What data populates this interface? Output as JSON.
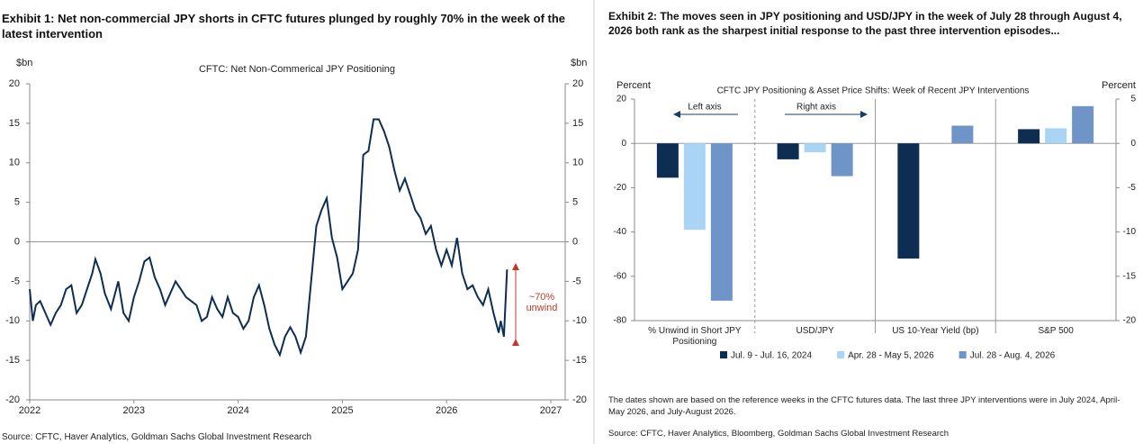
{
  "chart_data": [
    {
      "type": "line",
      "title": "Exhibit 1: Net non-commercial JPY shorts in CFTC futures plunged by roughly 70% in the week of the latest intervention",
      "subtitle": "CFTC: Net Non-Commerical JPY Positioning",
      "y_label": "$bn",
      "y2_label": "$bn",
      "annotation": "~70% unwind",
      "source": "Source: CFTC, Haver Analytics, Goldman Sachs Global Investment Research",
      "color": "#0d2d52",
      "x": [
        2022.0,
        2022.03,
        2022.06,
        2022.1,
        2022.15,
        2022.2,
        2022.25,
        2022.3,
        2022.35,
        2022.4,
        2022.45,
        2022.5,
        2022.55,
        2022.6,
        2022.63,
        2022.68,
        2022.72,
        2022.78,
        2022.85,
        2022.9,
        2022.95,
        2023.0,
        2023.05,
        2023.1,
        2023.15,
        2023.2,
        2023.25,
        2023.3,
        2023.35,
        2023.4,
        2023.45,
        2023.5,
        2023.55,
        2023.6,
        2023.65,
        2023.7,
        2023.75,
        2023.8,
        2023.85,
        2023.9,
        2023.95,
        2024.0,
        2024.05,
        2024.1,
        2024.15,
        2024.2,
        2024.25,
        2024.3,
        2024.35,
        2024.4,
        2024.45,
        2024.5,
        2024.55,
        2024.6,
        2024.65,
        2024.7,
        2024.75,
        2024.8,
        2024.85,
        2024.9,
        2024.95,
        2025.0,
        2025.05,
        2025.1,
        2025.15,
        2025.2,
        2025.25,
        2025.3,
        2025.35,
        2025.4,
        2025.45,
        2025.5,
        2025.55,
        2025.6,
        2025.65,
        2025.7,
        2025.75,
        2025.8,
        2025.85,
        2025.9,
        2025.95,
        2026.0,
        2026.05,
        2026.1,
        2026.15,
        2026.2,
        2026.25,
        2026.3,
        2026.35,
        2026.4,
        2026.45,
        2026.5,
        2026.52,
        2026.55,
        2026.58
      ],
      "values": [
        -6,
        -10,
        -8,
        -7.5,
        -9,
        -10.5,
        -9,
        -8,
        -6,
        -5.5,
        -9,
        -8,
        -6,
        -4,
        -2.2,
        -4,
        -6.5,
        -8.5,
        -5,
        -9,
        -10,
        -7,
        -5,
        -2.5,
        -2,
        -4.5,
        -6,
        -8,
        -6.5,
        -5,
        -6,
        -7,
        -7.5,
        -8,
        -10,
        -9.5,
        -7,
        -8.5,
        -9.5,
        -7,
        -9,
        -9.5,
        -11,
        -10,
        -7,
        -5.5,
        -8,
        -11,
        -13,
        -14.3,
        -12,
        -10.8,
        -12,
        -14,
        -12,
        -5,
        2,
        4,
        5.5,
        0.5,
        -2,
        -6,
        -5,
        -4,
        -1,
        11,
        11.5,
        15.5,
        15.5,
        14,
        12,
        9,
        6.5,
        8,
        6,
        4,
        3,
        1,
        2,
        -1,
        -3,
        -1,
        -3,
        0.5,
        -4,
        -6,
        -5.5,
        -7,
        -8,
        -6,
        -9,
        -11.5,
        -10,
        -12,
        -3.5
      ],
      "xlim": [
        2022,
        2027
      ],
      "xticks": [
        2022,
        2023,
        2024,
        2025,
        2026,
        2027
      ],
      "ylim": [
        -20,
        20
      ],
      "yticks": [
        20,
        15,
        10,
        5,
        0,
        -5,
        -10,
        -15,
        -20
      ],
      "y2lim": [
        -20,
        20
      ],
      "y2ticks": [
        20,
        15,
        10,
        5,
        0,
        -5,
        -10,
        -15,
        -20
      ]
    },
    {
      "type": "bar",
      "title": "Exhibit 2: The moves seen in JPY positioning and USD/JPY in the week of July 28 through August 4, 2026 both rank as the sharpest initial response to the past three intervention episodes...",
      "subtitle": "CFTC JPY Positioning & Asset Price Shifts: Week of Recent JPY Interventions",
      "y_label": "Percent",
      "y2_label": "Percent",
      "annotations": [
        "Left axis",
        "Right axis"
      ],
      "note": "The dates shown are based on the reference weeks in the CFTC futures data. The last three JPY interventions were in July 2024, April-May 2026, and July-August 2026.",
      "source": "Source: CFTC, Haver Analytics, Bloomberg, Goldman Sachs Global Investment Research",
      "categories": [
        "% Unwind in Short JPY Positioning",
        "USD/JPY",
        "US 10-Year Yield (bp)",
        "S&P 500"
      ],
      "category_axes": [
        "y",
        "y2",
        "y2",
        "y2"
      ],
      "series": [
        {
          "name": "Jul. 9 - Jul. 16, 2024",
          "color": "#0d2d52",
          "values": [
            -15.5,
            -1.8,
            -13,
            1.6
          ]
        },
        {
          "name": "Apr. 28 - May 5, 2026",
          "color": "#a9d4f5",
          "values": [
            -39,
            -1.0,
            null,
            1.7
          ]
        },
        {
          "name": "Jul. 28 - Aug. 4, 2026",
          "color": "#6f95c8",
          "values": [
            -71,
            -3.7,
            2.0,
            4.2
          ]
        }
      ],
      "ylim": [
        -80,
        20
      ],
      "yticks": [
        20,
        0,
        -20,
        -40,
        -60,
        -80
      ],
      "y2lim": [
        -20,
        5
      ],
      "y2ticks": [
        5,
        0,
        -5,
        -10,
        -15,
        -20
      ]
    }
  ]
}
